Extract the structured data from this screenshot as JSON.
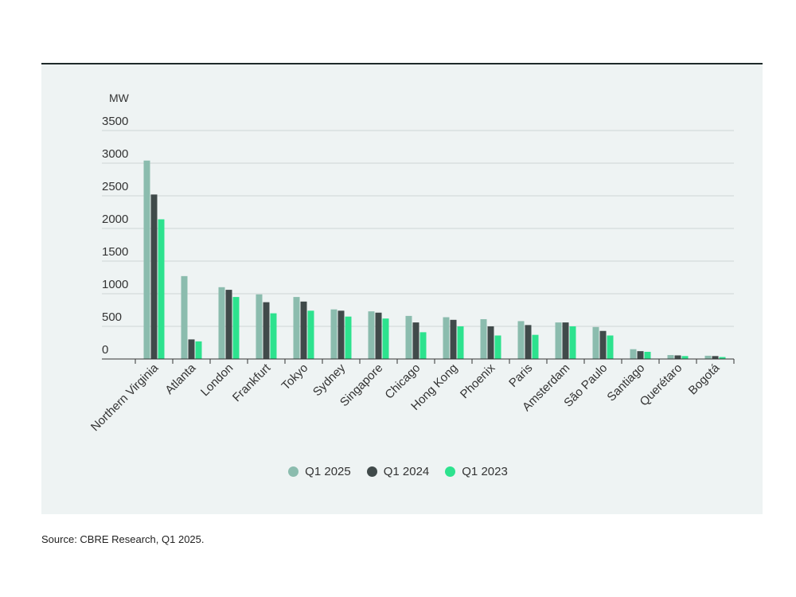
{
  "source": "Source: CBRE Research, Q1 2025.",
  "chart_data": {
    "type": "bar",
    "title": "",
    "xlabel": "",
    "ylabel": "MW",
    "ylim": [
      0,
      3500
    ],
    "yticks": [
      "0",
      "500",
      "1000",
      "1500",
      "2000",
      "2500",
      "3000",
      "3500"
    ],
    "grid": true,
    "legend_position": "bottom-center",
    "categories": [
      "Northern Virginia",
      "Atlanta",
      "London",
      "Frankfurt",
      "Tokyo",
      "Sydney",
      "Singapore",
      "Chicago",
      "Hong Kong",
      "Phoenix",
      "Paris",
      "Amsterdam",
      "São Paulo",
      "Santiago",
      "Querétaro",
      "Bogotá"
    ],
    "series": [
      {
        "name": "Q1 2025",
        "color": "#8bbcae",
        "values": [
          3040,
          1270,
          1100,
          990,
          950,
          760,
          730,
          660,
          640,
          610,
          580,
          560,
          490,
          150,
          60,
          50
        ]
      },
      {
        "name": "Q1 2024",
        "color": "#404a4a",
        "values": [
          2520,
          300,
          1060,
          870,
          880,
          740,
          710,
          560,
          600,
          500,
          520,
          560,
          430,
          120,
          55,
          45
        ]
      },
      {
        "name": "Q1 2023",
        "color": "#2de28e",
        "values": [
          2140,
          270,
          950,
          700,
          740,
          650,
          620,
          410,
          500,
          360,
          370,
          500,
          360,
          110,
          45,
          30
        ]
      }
    ]
  }
}
